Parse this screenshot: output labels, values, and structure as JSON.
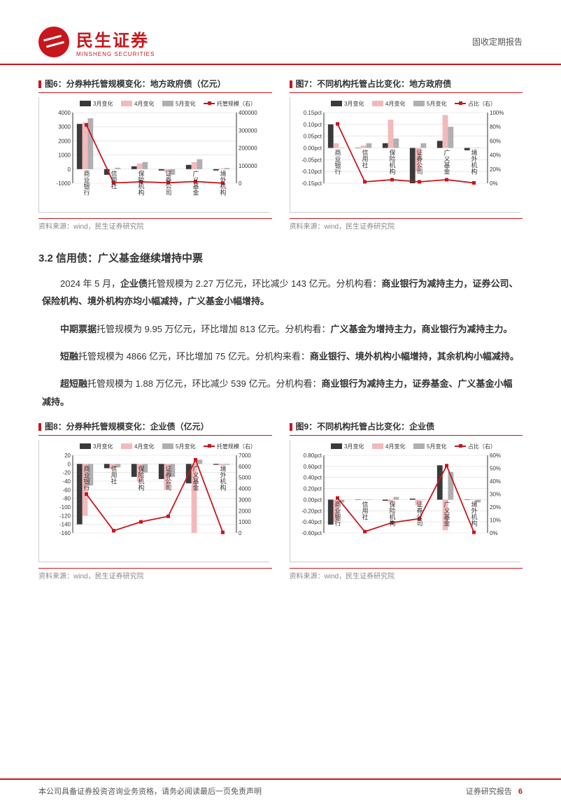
{
  "header": {
    "logo_cn": "民生证券",
    "logo_en": "MINSHENG SECURITIES",
    "right": "固收定期报告"
  },
  "chart6": {
    "title": "图6：分券种托管规模变化：地方政府债（亿元）",
    "legend": [
      "3月变化",
      "4月变化",
      "5月变化",
      "托管规模（右）"
    ],
    "categories": [
      "商业银行",
      "信用社",
      "保险机构",
      "证券公司",
      "广义基金",
      "境外机构"
    ],
    "series": {
      "mar": [
        3200,
        -400,
        200,
        -100,
        300,
        -100
      ],
      "apr": [
        3300,
        0,
        400,
        -200,
        500,
        50
      ],
      "may": [
        3600,
        100,
        500,
        -400,
        700,
        80
      ]
    },
    "line": [
      330000,
      2000,
      8000,
      3000,
      10000,
      500
    ],
    "ylim_left": [
      -1000,
      4000
    ],
    "yticks_left": [
      -1000,
      0,
      1000,
      2000,
      3000,
      4000
    ],
    "ylim_right": [
      0,
      400000
    ],
    "yticks_right": [
      0,
      100000,
      200000,
      300000,
      400000
    ],
    "colors": {
      "mar": "#3a3a3a",
      "apr": "#f3b9bb",
      "may": "#b0b0b0",
      "line": "#c8161d",
      "grid": "#d9d9d9",
      "bg": "#ffffff"
    },
    "source": "资料来源：wind，民生证券研究院"
  },
  "chart7": {
    "title": "图7：不同机构托管占比变化：地方政府债",
    "legend": [
      "3月变化",
      "4月变化",
      "5月变化",
      "占比（右）"
    ],
    "categories": [
      "商业银行",
      "信用社",
      "保险机构",
      "证券公司",
      "广义基金",
      "境外机构"
    ],
    "series": {
      "mar": [
        0.1,
        0.0,
        0.02,
        -0.15,
        0.03,
        -0.01
      ],
      "apr": [
        0.02,
        0.01,
        0.12,
        -0.1,
        0.14,
        0.0
      ],
      "may": [
        0.0,
        0.02,
        0.04,
        0.02,
        0.09,
        0.0
      ]
    },
    "line": [
      84,
      2,
      5,
      2,
      5,
      0.5
    ],
    "ylim_left": [
      -0.15,
      0.15
    ],
    "yticks_left": [
      "-0.15pct",
      "-0.10pct",
      "-0.05pct",
      "0.00pct",
      "0.05pct",
      "0.10pct",
      "0.15pct"
    ],
    "ylim_right": [
      0,
      100
    ],
    "yticks_right": [
      "0%",
      "20%",
      "40%",
      "60%",
      "80%",
      "100%"
    ],
    "colors": {
      "mar": "#3a3a3a",
      "apr": "#f3b9bb",
      "may": "#b0b0b0",
      "line": "#c8161d",
      "grid": "#d9d9d9"
    },
    "source": "资料来源：wind，民生证券研究院"
  },
  "section": {
    "title": "3.2 信用债：广义基金继续增持中票",
    "p1_a": "2024 年 5 月，",
    "p1_b": "企业债",
    "p1_c": "托管规模为 2.27 万亿元，环比减少 143 亿元。分机构看：",
    "p1_d": "商业银行为减持主力，证券公司、保险机构、境外机构亦均小幅减持，广义基金小幅增持。",
    "p2_a": "中期票据",
    "p2_b": "托管规模为 9.95 万亿元，环比增加 813 亿元。分机构看：",
    "p2_c": "广义基金为增持主力，商业银行为减持主力。",
    "p3_a": "短融",
    "p3_b": "托管规模为 4866 亿元，环比增加 75 亿元。分机构来看：",
    "p3_c": "商业银行、境外机构小幅增持，其余机构小幅减持。",
    "p4_a": "超短融",
    "p4_b": "托管规模为 1.88 万亿元，环比减少 539 亿元。分机构看：",
    "p4_c": "商业银行为减持主力，证券基金、广义基金小幅减持。"
  },
  "chart8": {
    "title": "图8：分券种托管规模变化：企业债（亿元）",
    "legend": [
      "3月变化",
      "4月变化",
      "5月变化",
      "托管规模（右）"
    ],
    "categories": [
      "商业银行",
      "信用社",
      "保险机构",
      "证券公司",
      "广义基金",
      "境外机构"
    ],
    "series": {
      "mar": [
        -140,
        -10,
        -30,
        -35,
        -45,
        -2
      ],
      "apr": [
        -120,
        -12,
        -40,
        -60,
        -160,
        -3
      ],
      "may": [
        -50,
        -8,
        -20,
        -30,
        10,
        -2
      ]
    },
    "line": [
      3500,
      200,
      1000,
      1500,
      6600,
      50
    ],
    "ylim_left": [
      -160,
      20
    ],
    "yticks_left": [
      -160,
      -140,
      -120,
      -100,
      -80,
      -60,
      -40,
      -20,
      0,
      20
    ],
    "ylim_right": [
      0,
      7000
    ],
    "yticks_right": [
      0,
      1000,
      2000,
      3000,
      4000,
      5000,
      6000,
      7000
    ],
    "colors": {
      "mar": "#3a3a3a",
      "apr": "#f3b9bb",
      "may": "#b0b0b0",
      "line": "#c8161d",
      "grid": "#d9d9d9"
    },
    "source": "资料来源：wind，民生证券研究院"
  },
  "chart9": {
    "title": "图9：不同机构托管占比变化：企业债",
    "legend": [
      "3月变化",
      "4月变化",
      "5月变化",
      "占比（右）"
    ],
    "categories": [
      "商业银行",
      "信用社",
      "保险机构",
      "证券公司",
      "广义基金",
      "境外机构"
    ],
    "series": {
      "mar": [
        -0.45,
        0.0,
        -0.02,
        0.02,
        0.62,
        0.0
      ],
      "apr": [
        -0.4,
        0.0,
        -0.05,
        -0.1,
        -0.55,
        0.0
      ],
      "may": [
        -0.05,
        0.0,
        0.05,
        0.0,
        0.5,
        -0.05
      ]
    },
    "line": [
      27,
      1,
      8,
      11,
      52,
      0.5
    ],
    "ylim_left": [
      -0.6,
      0.8
    ],
    "yticks_left": [
      "-0.60pct",
      "-0.40pct",
      "-0.20pct",
      "0.00pct",
      "0.20pct",
      "0.40pct",
      "0.60pct",
      "0.80pct"
    ],
    "ylim_right": [
      0,
      60
    ],
    "yticks_right": [
      "0%",
      "10%",
      "20%",
      "30%",
      "40%",
      "50%",
      "60%"
    ],
    "colors": {
      "mar": "#3a3a3a",
      "apr": "#f3b9bb",
      "may": "#b0b0b0",
      "line": "#c8161d",
      "grid": "#d9d9d9"
    },
    "source": "资料来源：wind，民生证券研究院"
  },
  "footer": {
    "left": "本公司具备证券投资咨询业务资格，请务必阅读最后一页免责声明",
    "right_label": "证券研究报告",
    "page": "6"
  }
}
